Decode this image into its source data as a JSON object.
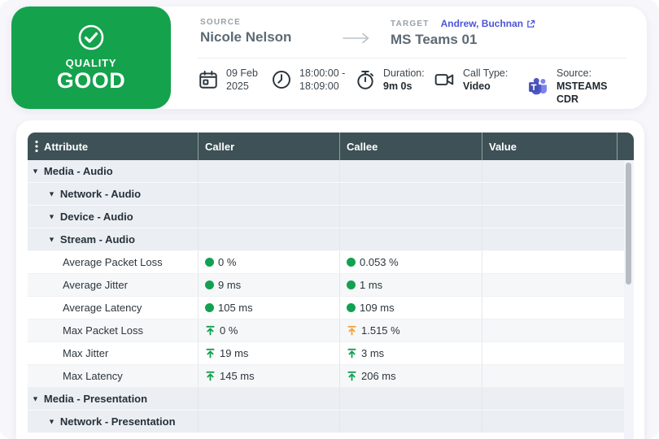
{
  "quality_badge": {
    "label": "QUALITY",
    "value": "GOOD"
  },
  "header": {
    "source": {
      "label": "SOURCE",
      "name": "Nicole Nelson"
    },
    "target": {
      "label": "TARGET",
      "link": "Andrew, Buchnan",
      "name": "MS Teams 01"
    },
    "info": [
      {
        "icon": "calendar-icon",
        "line1": "09 Feb",
        "line2": "2025"
      },
      {
        "icon": "clock-icon",
        "line1": "18:00:00 -",
        "line2": "18:09:00"
      },
      {
        "icon": "stopwatch-icon",
        "line1": "Duration:",
        "line2": "9m 0s"
      },
      {
        "icon": "video-icon",
        "line1": "Call Type:",
        "line2": "Video"
      },
      {
        "icon": "teams-icon",
        "line1": "Source:",
        "line2": "MSTEAMS CDR"
      }
    ]
  },
  "table": {
    "columns": [
      "Attribute",
      "Caller",
      "Callee",
      "Value"
    ],
    "rows": [
      {
        "type": "group",
        "level": 0,
        "label": "Media - Audio"
      },
      {
        "type": "group",
        "level": 1,
        "label": "Network - Audio"
      },
      {
        "type": "group",
        "level": 1,
        "label": "Device - Audio"
      },
      {
        "type": "group",
        "level": 1,
        "label": "Stream - Audio"
      },
      {
        "type": "metric",
        "label": "Average Packet Loss",
        "caller": {
          "indicator": "dot",
          "color": "green",
          "value": "0 %"
        },
        "callee": {
          "indicator": "dot",
          "color": "green",
          "value": "0.053 %"
        }
      },
      {
        "type": "metric",
        "label": "Average Jitter",
        "caller": {
          "indicator": "dot",
          "color": "green",
          "value": "9 ms"
        },
        "callee": {
          "indicator": "dot",
          "color": "green",
          "value": "1 ms"
        }
      },
      {
        "type": "metric",
        "label": "Average Latency",
        "caller": {
          "indicator": "dot",
          "color": "green",
          "value": "105 ms"
        },
        "callee": {
          "indicator": "dot",
          "color": "green",
          "value": "109 ms"
        }
      },
      {
        "type": "metric",
        "label": "Max Packet Loss",
        "caller": {
          "indicator": "max",
          "color": "green",
          "value": "0 %"
        },
        "callee": {
          "indicator": "max",
          "color": "orange",
          "value": "1.515 %"
        }
      },
      {
        "type": "metric",
        "label": "Max Jitter",
        "caller": {
          "indicator": "max",
          "color": "green",
          "value": "19 ms"
        },
        "callee": {
          "indicator": "max",
          "color": "green",
          "value": "3 ms"
        }
      },
      {
        "type": "metric",
        "label": "Max Latency",
        "caller": {
          "indicator": "max",
          "color": "green",
          "value": "145 ms"
        },
        "callee": {
          "indicator": "max",
          "color": "green",
          "value": "206 ms"
        }
      },
      {
        "type": "group",
        "level": 0,
        "label": "Media - Presentation"
      },
      {
        "type": "group",
        "level": 1,
        "label": "Network - Presentation"
      }
    ]
  },
  "colors": {
    "quality_green": "#15a24d",
    "status_green": "#12a150",
    "status_orange": "#f0a33c",
    "table_header": "#3d5156",
    "link_indigo": "#4a55d8"
  }
}
